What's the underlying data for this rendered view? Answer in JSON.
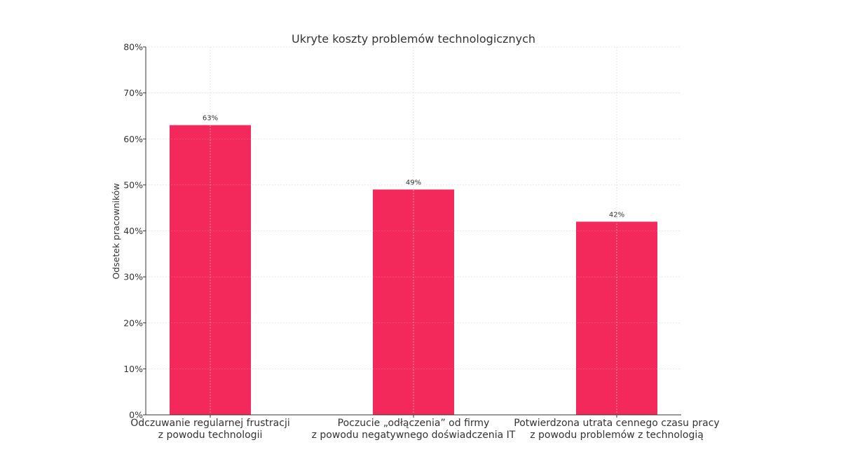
{
  "chart_data": {
    "type": "bar",
    "title": "Ukryte koszty problemów technologicznych",
    "xlabel": "",
    "ylabel": "Odsetek pracowników",
    "categories": [
      [
        "Odczuwanie regularnej frustracji",
        "z powodu technologii"
      ],
      [
        "Poczucie „odłączenia” od firmy",
        "z powodu negatywnego doświadczenia IT"
      ],
      [
        "Potwierdzona utrata cennego czasu pracy",
        "z powodu problemów z technologią"
      ]
    ],
    "values": [
      63,
      49,
      42
    ],
    "value_labels": [
      "63%",
      "49%",
      "42%"
    ],
    "ylim": [
      0,
      80
    ],
    "yticks": [
      0,
      10,
      20,
      30,
      40,
      50,
      60,
      70,
      80
    ],
    "ytick_labels": [
      "0%",
      "10%",
      "20%",
      "30%",
      "40%",
      "50%",
      "60%",
      "70%",
      "80%"
    ],
    "grid": true,
    "legend": null,
    "colors": {
      "bar": "#F2295A",
      "grid": "#d9d9d9",
      "axis": "#333333"
    }
  }
}
